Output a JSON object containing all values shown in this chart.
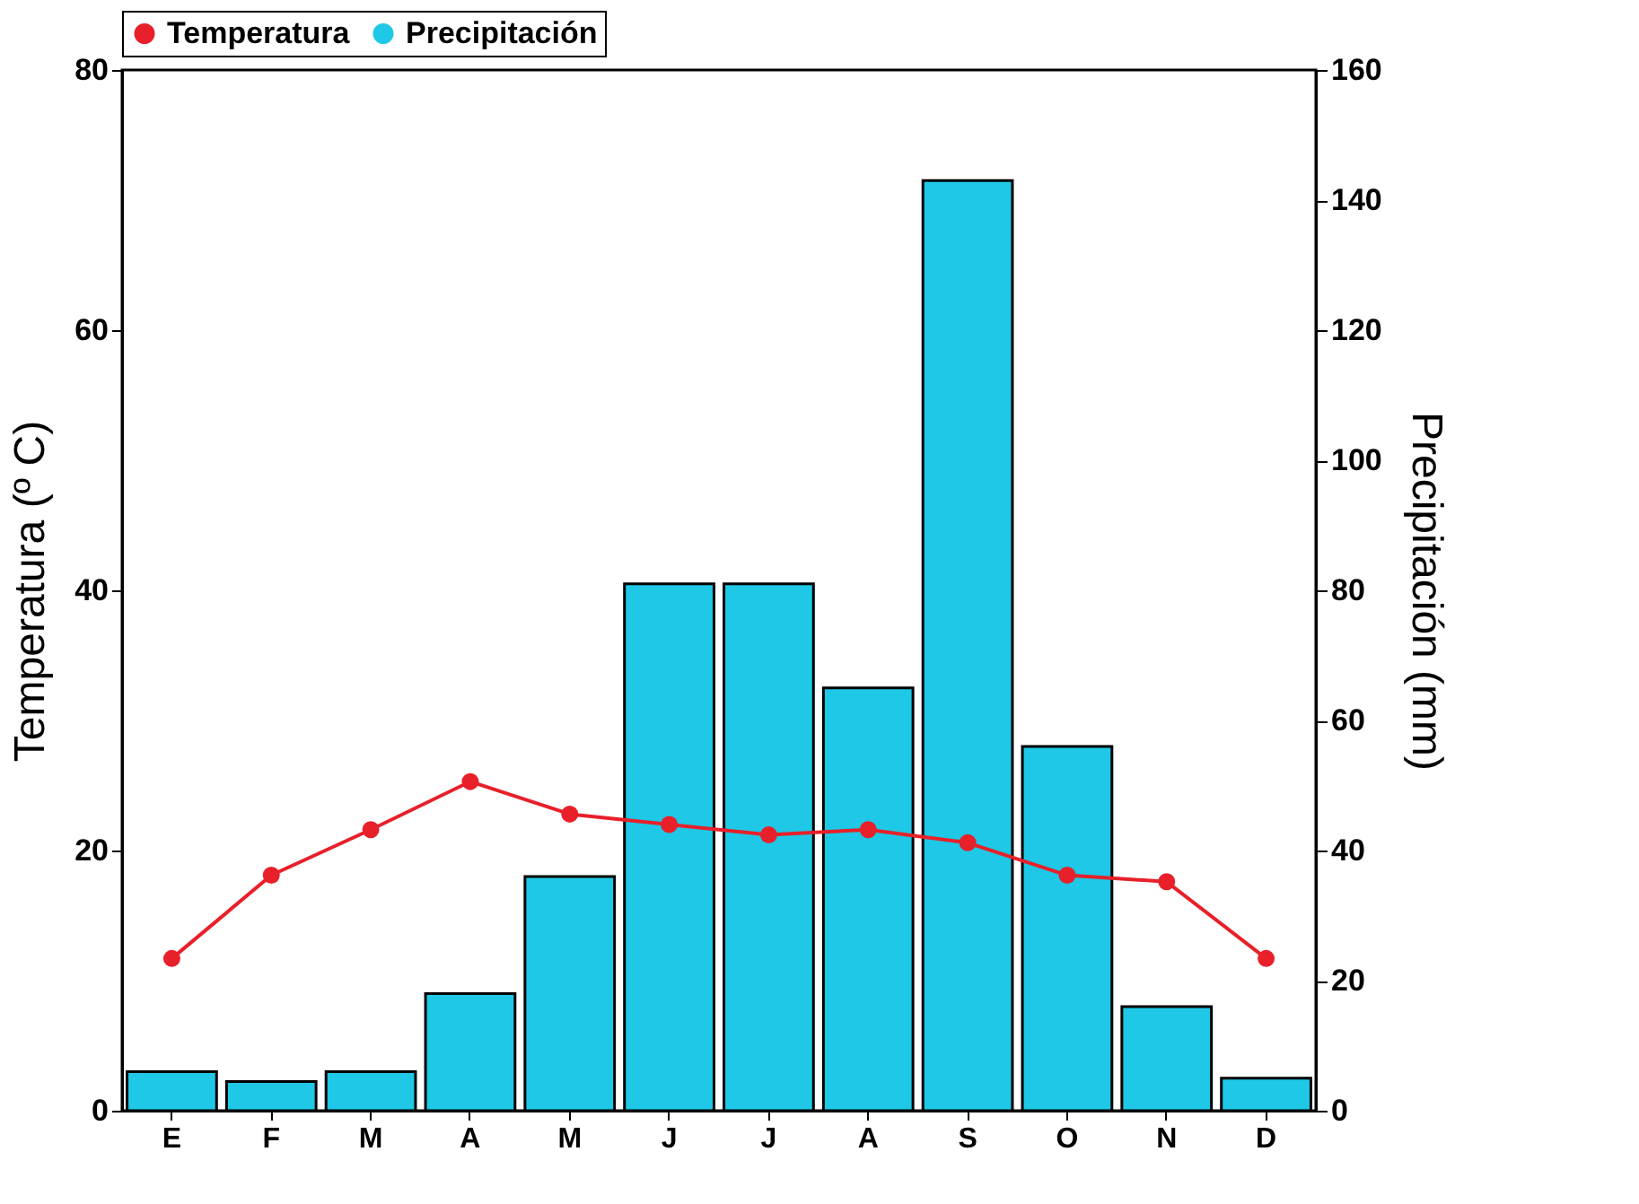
{
  "chart_data": {
    "type": "bar",
    "categories": [
      "E",
      "F",
      "M",
      "A",
      "M",
      "J",
      "J",
      "A",
      "S",
      "O",
      "N",
      "D"
    ],
    "ylabel": "Temperatura (º C)",
    "y2label": "Precipitación (mm)",
    "ylim": [
      0,
      80
    ],
    "yticks": [
      0,
      20,
      40,
      60,
      80
    ],
    "y2lim": [
      0,
      160
    ],
    "y2ticks": [
      0,
      20,
      40,
      60,
      80,
      100,
      120,
      140,
      160
    ],
    "grid": false,
    "legend": "top",
    "marker": "circle",
    "line_style": "solid",
    "series": [
      {
        "name": "Temperatura",
        "type": "line",
        "axis": "y",
        "color": "#e8202a",
        "values": [
          11.7,
          18.1,
          21.6,
          25.3,
          22.8,
          22.0,
          21.2,
          21.6,
          20.6,
          18.1,
          17.6,
          11.7
        ]
      },
      {
        "name": "Precipitación",
        "axis": "y2",
        "color": "#1ec8e6",
        "values": [
          6,
          4.5,
          6,
          18,
          36,
          81,
          81,
          65,
          143,
          56,
          16,
          5
        ]
      }
    ]
  }
}
